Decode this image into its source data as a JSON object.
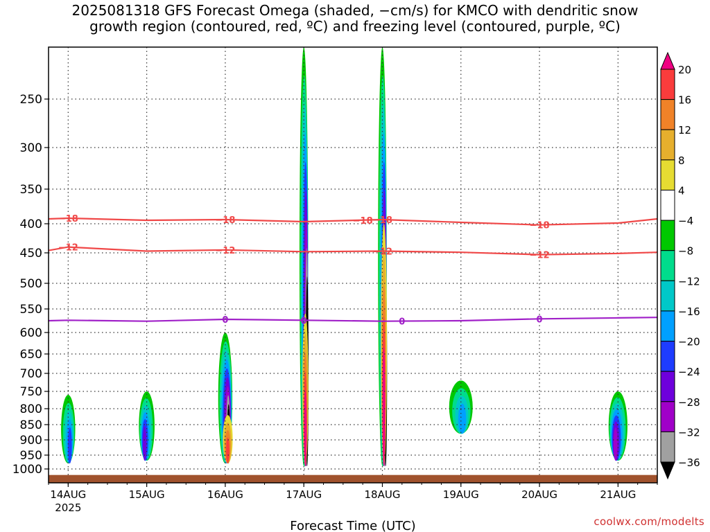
{
  "chart_data": {
    "type": "heatmap",
    "title_line1": "2025081318 GFS Forecast Omega (shaded, −cm/s) for KMCO with dendritic snow",
    "title_line2": "growth region (contoured, red, ºC) and freezing level (contoured, purple, ºC)",
    "xlabel": "Forecast Time (UTC)",
    "ylabel": "",
    "y_axis": {
      "scale": "pressure",
      "ylim": [
        1030,
        200
      ],
      "ticks": [
        250,
        300,
        350,
        400,
        450,
        500,
        550,
        600,
        650,
        700,
        750,
        800,
        850,
        900,
        950,
        1000
      ],
      "tick_labels": [
        "250",
        "300",
        "350",
        "400",
        "450",
        "500",
        "550",
        "600",
        "650",
        "700",
        "750",
        "800",
        "850",
        "900",
        "950",
        "1000"
      ],
      "grid": true
    },
    "x_axis": {
      "xlim": [
        "2025-08-13T18",
        "2025-08-21T12"
      ],
      "ticks": [
        "2025-08-14T00",
        "2025-08-15T00",
        "2025-08-16T00",
        "2025-08-17T00",
        "2025-08-18T00",
        "2025-08-19T00",
        "2025-08-20T00",
        "2025-08-21T00"
      ],
      "tick_labels": [
        "14AUG",
        "15AUG",
        "16AUG",
        "17AUG",
        "18AUG",
        "19AUG",
        "20AUG",
        "21AUG"
      ],
      "year_label": "2025",
      "grid": true
    },
    "colorbar": {
      "levels": [
        -36,
        -32,
        -28,
        -24,
        -20,
        -16,
        -12,
        -8,
        -4,
        4,
        8,
        12,
        16,
        20
      ],
      "labels": [
        "20",
        "16",
        "12",
        "8",
        "4",
        "−4",
        "−8",
        "−12",
        "−16",
        "−20",
        "−24",
        "−28",
        "−32",
        "−36"
      ],
      "colors": [
        "#000000",
        "#a0a0a0",
        "#a000c8",
        "#6e00dc",
        "#1e3cff",
        "#00a0ff",
        "#00c8c8",
        "#00dc8c",
        "#00c800",
        "#ffffff",
        "#e6dc32",
        "#e6af2d",
        "#f08228",
        "#fa3c3c",
        "#f00082"
      ]
    },
    "shaded_features": [
      {
        "center": "2025-08-14T00",
        "p_top": 760,
        "p_bottom": 980,
        "omega_min": -20
      },
      {
        "center": "2025-08-15T00",
        "p_top": 750,
        "p_bottom": 970,
        "omega_min": -24
      },
      {
        "center": "2025-08-16T00",
        "p_top": 600,
        "p_bottom": 980,
        "omega_min": -36
      },
      {
        "center": "2025-08-16T00",
        "p_top": 820,
        "p_bottom": 980,
        "omega_max": 16
      },
      {
        "center": "2025-08-17T00",
        "p_top": 200,
        "p_bottom": 990,
        "omega_min": -36
      },
      {
        "center": "2025-08-17T00",
        "p_top": 560,
        "p_bottom": 990,
        "omega_max": 20
      },
      {
        "center": "2025-08-18T00",
        "p_top": 200,
        "p_bottom": 990,
        "omega_min": -36
      },
      {
        "center": "2025-08-18T00",
        "p_top": 400,
        "p_bottom": 990,
        "omega_max": 20
      },
      {
        "center": "2025-08-19T00",
        "p_top": 720,
        "p_bottom": 880,
        "omega_min": -16
      },
      {
        "center": "2025-08-21T00",
        "p_top": 750,
        "p_bottom": 970,
        "omega_min": -28
      }
    ],
    "contours": [
      {
        "label": "−18",
        "color": "#f04848",
        "label_positions": [
          "2025-08-14T00",
          "2025-08-16T00",
          "2025-08-17T18",
          "2025-08-18T00",
          "2025-08-20T00"
        ],
        "x": [
          "2025-08-13T18",
          "2025-08-14T00",
          "2025-08-15T00",
          "2025-08-16T00",
          "2025-08-17T00",
          "2025-08-18T00",
          "2025-08-19T00",
          "2025-08-20T00",
          "2025-08-21T00",
          "2025-08-21T12"
        ],
        "pressure": [
          393,
          392,
          395,
          394,
          397,
          394,
          398,
          402,
          399,
          393
        ]
      },
      {
        "label": "−12",
        "color": "#f04848",
        "label_positions": [
          "2025-08-14T00",
          "2025-08-16T00",
          "2025-08-18T00",
          "2025-08-20T00"
        ],
        "x": [
          "2025-08-13T18",
          "2025-08-14T00",
          "2025-08-15T00",
          "2025-08-16T00",
          "2025-08-17T00",
          "2025-08-18T00",
          "2025-08-19T00",
          "2025-08-20T00",
          "2025-08-21T00",
          "2025-08-21T12"
        ],
        "pressure": [
          446,
          440,
          447,
          445,
          448,
          447,
          449,
          453,
          451,
          449
        ]
      },
      {
        "label": "0",
        "color": "#a020c8",
        "label_positions": [
          "2025-08-16T00",
          "2025-08-17T00",
          "2025-08-18T06",
          "2025-08-20T00"
        ],
        "x": [
          "2025-08-13T18",
          "2025-08-14T00",
          "2025-08-15T00",
          "2025-08-16T00",
          "2025-08-17T00",
          "2025-08-18T00",
          "2025-08-19T00",
          "2025-08-20T00",
          "2025-08-21T00",
          "2025-08-21T12"
        ],
        "pressure": [
          575,
          574,
          576,
          572,
          574,
          576,
          575,
          571,
          569,
          568
        ]
      }
    ],
    "terrain_fill_color": "#a0522d",
    "credit": "coolwx.com/modelts"
  }
}
